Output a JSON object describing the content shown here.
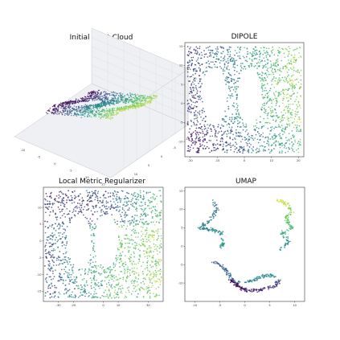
{
  "figure": {
    "background": "#ffffff",
    "colormap": "viridis",
    "colormap_stops": [
      "#440154",
      "#3b528b",
      "#21918c",
      "#5ec962",
      "#fde725"
    ]
  },
  "chart_data": [
    {
      "type": "scatter",
      "projection": "3d",
      "title": "Initial Point Cloud",
      "shape": "double-holed figure-eight sheet",
      "x_ticks": [
        "-10",
        "-5",
        "0",
        "5",
        "10",
        "15"
      ],
      "y_ticks": [
        "-10",
        "-5",
        "0",
        "5",
        "10"
      ],
      "z_ticks": [
        "15",
        "10",
        "5",
        "0",
        "-5",
        "-10",
        "-15"
      ],
      "grid": true
    },
    {
      "type": "scatter",
      "title": "DIPOLE",
      "xlim": [
        -22,
        22
      ],
      "ylim": [
        -14,
        16
      ],
      "x_ticks": [
        "-20",
        "-10",
        "0",
        "10",
        "20"
      ],
      "y_ticks": [
        "15",
        "10",
        "5",
        "0",
        "-5",
        "-10"
      ],
      "holes": [
        {
          "cx": -11,
          "cy": 2
        },
        {
          "cx": 2,
          "cy": 2
        }
      ],
      "grid": false
    },
    {
      "type": "scatter",
      "title": "Local Metric Regularizer",
      "xlim": [
        -40,
        40
      ],
      "ylim": [
        -18,
        16
      ],
      "x_ticks": [
        "-30",
        "-20",
        "0",
        "10",
        "30"
      ],
      "y_ticks": [
        "10",
        "5",
        "0",
        "-5",
        "-10",
        "-15"
      ],
      "holes": [
        {
          "cx": -16,
          "cy": 0
        },
        {
          "cx": 2,
          "cy": 0
        }
      ],
      "grid": false
    },
    {
      "type": "scatter",
      "title": "UMAP",
      "xlim": [
        -12,
        12
      ],
      "ylim": [
        -15,
        16
      ],
      "x_ticks": [
        "-10",
        "-5",
        "0",
        "5",
        "10"
      ],
      "y_ticks": [
        "15",
        "10",
        "5",
        "0",
        "-5",
        "-10"
      ],
      "clusters": 4,
      "grid": false
    }
  ]
}
